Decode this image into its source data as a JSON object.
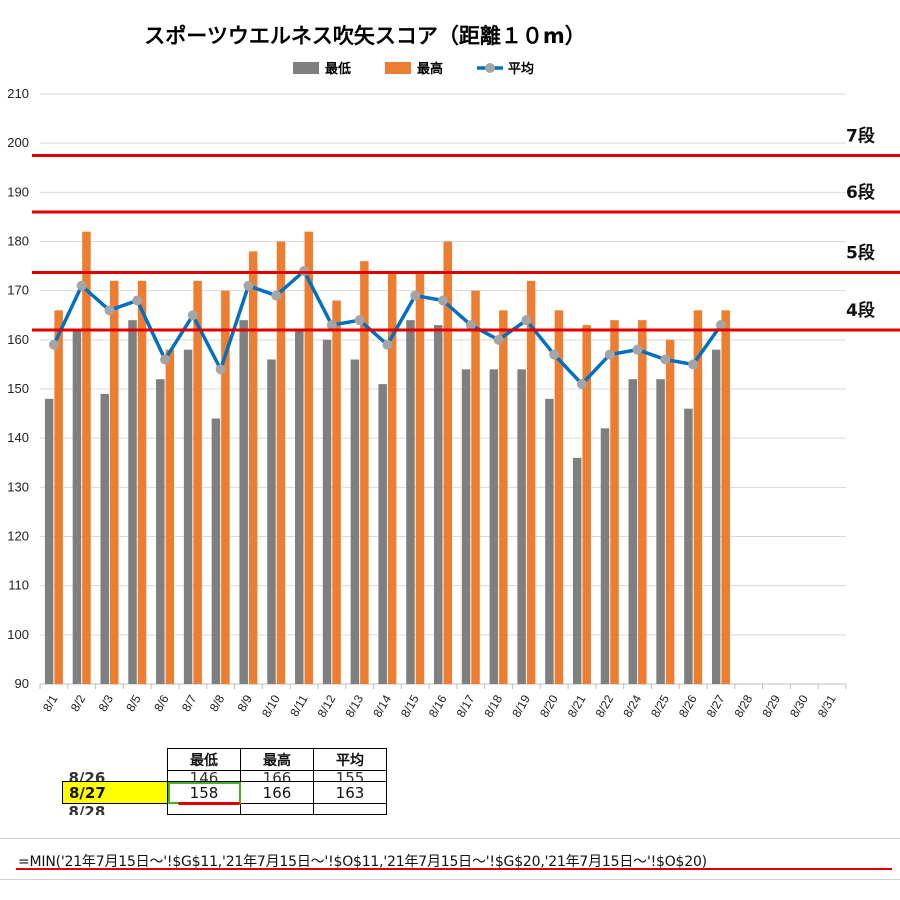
{
  "chart_data": {
    "type": "bar",
    "title": "スポーツウエルネス吹矢スコア（距離１０m）",
    "categories": [
      "8/1",
      "8/2",
      "8/3",
      "8/5",
      "8/6",
      "8/7",
      "8/8",
      "8/9",
      "8/10",
      "8/11",
      "8/12",
      "8/13",
      "8/14",
      "8/15",
      "8/16",
      "8/17",
      "8/18",
      "8/19",
      "8/20",
      "8/21",
      "8/22",
      "8/24",
      "8/25",
      "8/26",
      "8/27",
      "8/28",
      "8/29",
      "8/30",
      "8/31"
    ],
    "series": [
      {
        "name": "最低",
        "type": "bar",
        "color": "#7f7f7f",
        "values": [
          148,
          162,
          149,
          164,
          152,
          158,
          144,
          164,
          156,
          162,
          160,
          156,
          151,
          164,
          163,
          154,
          154,
          154,
          148,
          136,
          142,
          152,
          152,
          146,
          158,
          null,
          null,
          null,
          null
        ]
      },
      {
        "name": "最高",
        "type": "bar",
        "color": "#ed7d31",
        "values": [
          166,
          182,
          172,
          172,
          158,
          172,
          170,
          178,
          180,
          182,
          168,
          176,
          174,
          174,
          180,
          170,
          166,
          172,
          166,
          163,
          164,
          164,
          160,
          166,
          166,
          null,
          null,
          null,
          null
        ]
      },
      {
        "name": "平均",
        "type": "line",
        "color": "#0070c0",
        "marker_color": "#a5a5a5",
        "values": [
          159,
          171,
          166,
          168,
          156,
          165,
          154,
          171,
          169,
          174,
          163,
          164,
          159,
          169,
          168,
          163,
          160,
          164,
          157,
          151,
          157,
          158,
          156,
          155,
          163,
          null,
          null,
          null,
          null
        ]
      }
    ],
    "ylim": [
      90,
      210
    ],
    "yticks": [
      90,
      100,
      110,
      120,
      130,
      140,
      150,
      160,
      170,
      180,
      190,
      200,
      210
    ],
    "reference_lines": [
      {
        "label": "7段",
        "value": 197.5,
        "color": "#e00000"
      },
      {
        "label": "6段",
        "value": 186,
        "color": "#e00000"
      },
      {
        "label": "5段",
        "value": 173.7,
        "color": "#e00000"
      },
      {
        "label": "4段",
        "value": 162,
        "color": "#e00000"
      }
    ],
    "legend_position": "top-center",
    "grid": "horizontal"
  },
  "table": {
    "headers": [
      "最低",
      "最高",
      "平均"
    ],
    "rows": [
      {
        "date": "8/26",
        "min": "146",
        "max": "166",
        "avg": "155"
      },
      {
        "date": "8/27",
        "min": "158",
        "max": "166",
        "avg": "163"
      },
      {
        "date": "8/28",
        "min": "",
        "max": "",
        "avg": ""
      }
    ]
  },
  "formula": "=MIN('21年7月15日～'!$G$11,'21年7月15日～'!$O$11,'21年7月15日～'!$G$20,'21年7月15日～'!$O$20)"
}
